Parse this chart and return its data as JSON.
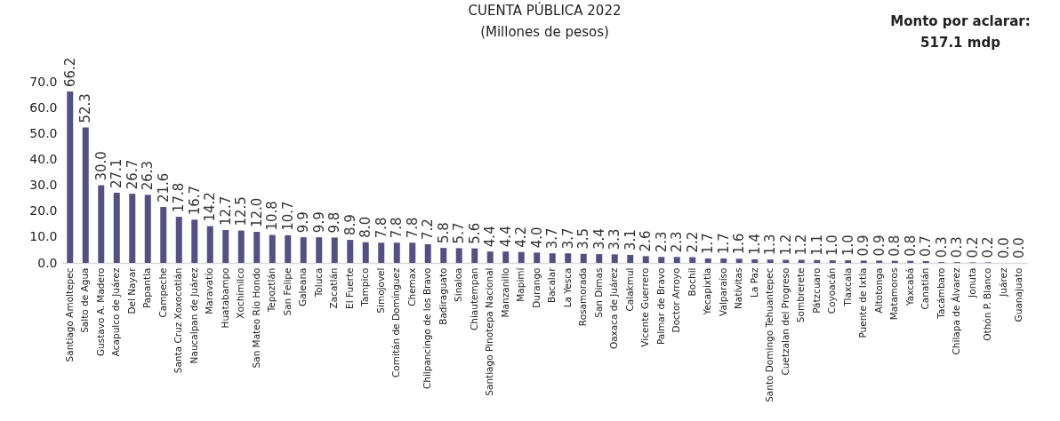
{
  "chart_data": {
    "type": "bar",
    "title": "CUENTA PÚBLICA 2022",
    "subtitle": "(Millones de pesos)",
    "annotations": [
      "Monto por aclarar:",
      "517.1 mdp"
    ],
    "categories": [
      "Santiago Amoltepec",
      "Salto de Agua",
      "Gustavo A. Madero",
      "Acapulco de Juárez",
      "Del Nayar",
      "Papantla",
      "Campeche",
      "Santa Cruz Xoxocotlán",
      "Naucalpan de Juárez",
      "Maravatío",
      "Huatabampo",
      "Xochimilco",
      "San Mateo Río Hondo",
      "Tepoztlán",
      "San Felipe",
      "Galeana",
      "Toluca",
      "Zacatlán",
      "El Fuerte",
      "Tampico",
      "Simojovel",
      "Comitán de Domínguez",
      "Chemax",
      "Chilpancingo de los Bravo",
      "Badiraguato",
      "Sinaloa",
      "Chiautempan",
      "Santiago Pinotepa Nacional",
      "Manzanillo",
      "Mapimí",
      "Durango",
      "Bacalar",
      "La Yesca",
      "Rosamorada",
      "San Dimas",
      "Oaxaca de Juárez",
      "Calakmul",
      "Vicente Guerrero",
      "Palmar de Bravo",
      "Doctor Arroyo",
      "Bochil",
      "Yecapixtla",
      "Valparaíso",
      "Natívitas",
      "La Paz",
      "Santo Domingo Tehuantepec",
      "Cuetzalan del Progreso",
      "Sombrerete",
      "Pátzcuaro",
      "Coyoacán",
      "Tlaxcala",
      "Puente de Ixtla",
      "Altotonga",
      "Matamoros",
      "Yaxcabá",
      "Canatlán",
      "Tacámbaro",
      "Chilapa de Álvarez",
      "Jonuta",
      "Othón P. Blanco",
      "Juárez",
      "Guanajuato"
    ],
    "values": [
      66.2,
      52.3,
      30.0,
      27.1,
      26.7,
      26.3,
      21.6,
      17.8,
      16.7,
      14.2,
      12.7,
      12.5,
      12.0,
      10.8,
      10.7,
      9.9,
      9.9,
      9.8,
      8.9,
      8.0,
      7.8,
      7.8,
      7.8,
      7.2,
      5.8,
      5.7,
      5.6,
      4.4,
      4.4,
      4.2,
      4.0,
      3.7,
      3.7,
      3.5,
      3.4,
      3.3,
      3.1,
      2.6,
      2.3,
      2.3,
      2.2,
      1.7,
      1.7,
      1.6,
      1.4,
      1.3,
      1.2,
      1.2,
      1.1,
      1.0,
      1.0,
      0.9,
      0.9,
      0.8,
      0.8,
      0.7,
      0.3,
      0.3,
      0.2,
      0.2,
      0.0,
      0.0
    ],
    "value_labels": [
      "66.2",
      "52.3",
      "30.0",
      "27.1",
      "26.7",
      "26.3",
      "21.6",
      "17.8",
      "16.7",
      "14.2",
      "12.7",
      "12.5",
      "12.0",
      "10.8",
      "10.7",
      "9.9",
      "9.9",
      "9.8",
      "8.9",
      "8.0",
      "7.8",
      "7.8",
      "7.8",
      "7.2",
      "5.8",
      "5.7",
      "5.6",
      "4.4",
      "4.4",
      "4.2",
      "4.0",
      "3.7",
      "3.7",
      "3.5",
      "3.4",
      "3.3",
      "3.1",
      "2.6",
      "2.3",
      "2.3",
      "2.2",
      "1.7",
      "1.7",
      "1.6",
      "1.4",
      "1.3",
      "1.2",
      "1.2",
      "1.1",
      "1.0",
      "1.0",
      "0.9",
      "0.9",
      "0.8",
      "0.8",
      "0.7",
      "0.3",
      "0.3",
      "0.2",
      "0.2",
      "0.0",
      "0.0"
    ],
    "color": "#545083",
    "ylim": [
      0,
      70
    ],
    "yticks": [
      {
        "value": 0,
        "label": "0.0"
      },
      {
        "value": 10,
        "label": "10.0"
      },
      {
        "value": 20,
        "label": "20.0"
      },
      {
        "value": 30,
        "label": "30.0"
      },
      {
        "value": 40,
        "label": "40.0"
      },
      {
        "value": 50,
        "label": "50.0"
      },
      {
        "value": 60,
        "label": "60.0"
      },
      {
        "value": 70,
        "label": "70.0"
      }
    ]
  }
}
